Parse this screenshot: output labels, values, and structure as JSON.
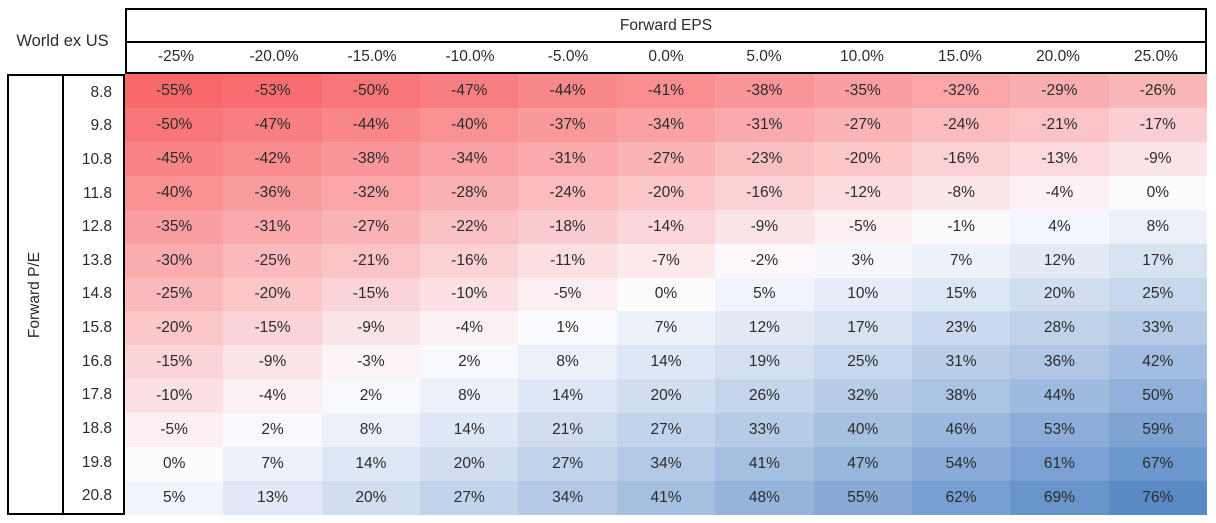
{
  "chart_data": {
    "type": "heatmap",
    "title": "World ex US",
    "corner_label": "World ex US",
    "col_axis_title": "Forward EPS",
    "row_axis_title": "Forward P/E",
    "col_headers": [
      "-25%",
      "-20.0%",
      "-15.0%",
      "-10.0%",
      "-5.0%",
      "0.0%",
      "5.0%",
      "10.0%",
      "15.0%",
      "20.0%",
      "25.0%"
    ],
    "row_headers": [
      "8.8",
      "9.8",
      "10.8",
      "11.8",
      "12.8",
      "13.8",
      "14.8",
      "15.8",
      "16.8",
      "17.8",
      "18.8",
      "19.8",
      "20.8"
    ],
    "value_suffix": "%",
    "rows": [
      [
        -55,
        -53,
        -50,
        -47,
        -44,
        -41,
        -38,
        -35,
        -32,
        -29,
        -26
      ],
      [
        -50,
        -47,
        -44,
        -40,
        -37,
        -34,
        -31,
        -27,
        -24,
        -21,
        -17
      ],
      [
        -45,
        -42,
        -38,
        -34,
        -31,
        -27,
        -23,
        -20,
        -16,
        -13,
        -9
      ],
      [
        -40,
        -36,
        -32,
        -28,
        -24,
        -20,
        -16,
        -12,
        -8,
        -4,
        0
      ],
      [
        -35,
        -31,
        -27,
        -22,
        -18,
        -14,
        -9,
        -5,
        -1,
        4,
        8
      ],
      [
        -30,
        -25,
        -21,
        -16,
        -11,
        -7,
        -2,
        3,
        7,
        12,
        17
      ],
      [
        -25,
        -20,
        -15,
        -10,
        -5,
        0,
        5,
        10,
        15,
        20,
        25
      ],
      [
        -20,
        -15,
        -9,
        -4,
        1,
        7,
        12,
        17,
        23,
        28,
        33
      ],
      [
        -15,
        -9,
        -3,
        2,
        8,
        14,
        19,
        25,
        31,
        36,
        42
      ],
      [
        -10,
        -4,
        2,
        8,
        14,
        20,
        26,
        32,
        38,
        44,
        50
      ],
      [
        -5,
        2,
        8,
        14,
        21,
        27,
        33,
        40,
        46,
        53,
        59
      ],
      [
        0,
        7,
        14,
        20,
        27,
        34,
        41,
        47,
        54,
        61,
        67
      ],
      [
        5,
        13,
        20,
        27,
        34,
        41,
        48,
        55,
        62,
        69,
        76
      ]
    ],
    "color_scale": {
      "min_value": -55,
      "mid_value": 0,
      "max_value": 76,
      "min_color": "#F8696B",
      "mid_color": "#FCFCFF",
      "max_color": "#5A8AC6"
    },
    "text_color": "#2b2b2b",
    "border_color": "#000000"
  }
}
